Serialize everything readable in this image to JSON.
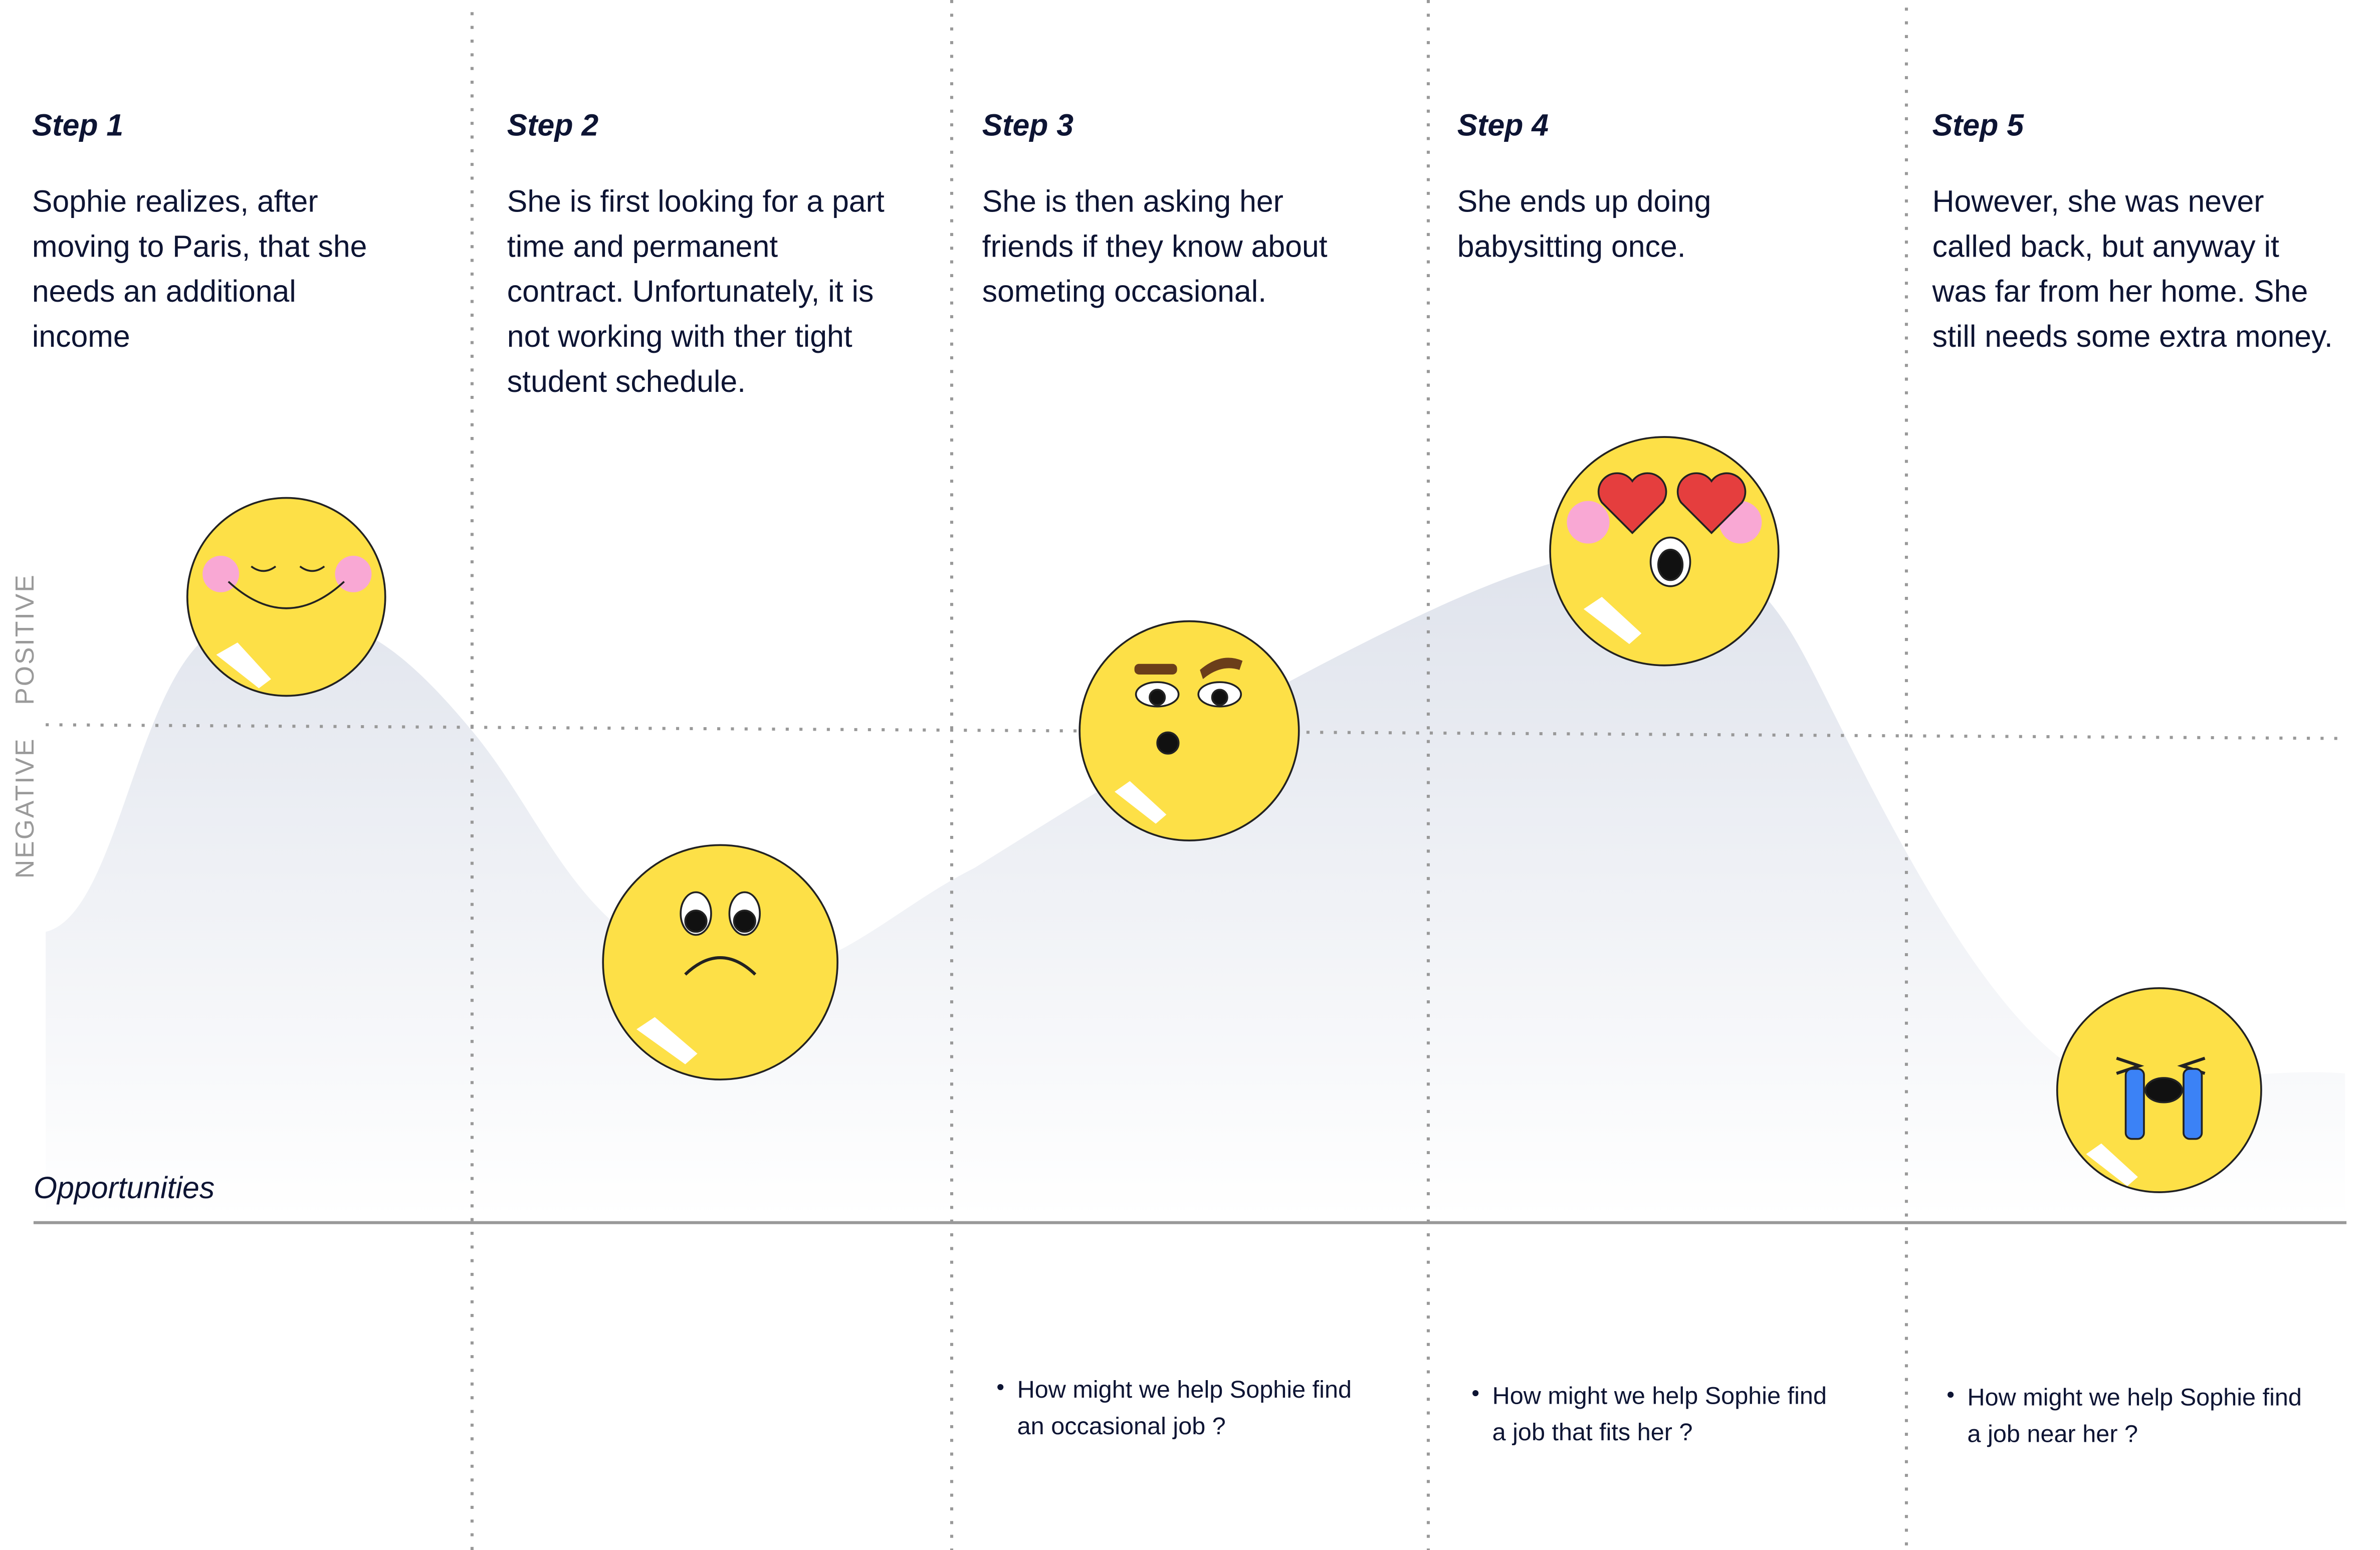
{
  "axis_labels": {
    "positive": "POSITIVE",
    "negative": "NEGATIVE"
  },
  "opportunities_label": "Opportunities",
  "steps": [
    {
      "title": "Step 1",
      "lines": [
        "Sophie realizes, after",
        "moving to Paris, that she",
        "needs an additional",
        "income"
      ]
    },
    {
      "title": "Step 2",
      "lines": [
        "She is first looking for a part",
        "time and permanent",
        "contract. Unfortunately, it is",
        "not working with ther tight",
        "student schedule."
      ]
    },
    {
      "title": "Step 3",
      "lines": [
        "She is then asking her",
        "friends if they know about",
        "someting occasional."
      ],
      "opportunity": [
        "How might we help Sophie find",
        "an occasional job ?"
      ]
    },
    {
      "title": "Step 4",
      "lines": [
        "She ends up doing",
        "babysitting once."
      ],
      "opportunity": [
        "How might we help Sophie find",
        "a job that fits her ?"
      ]
    },
    {
      "title": "Step 5",
      "lines": [
        "However, she was never",
        "called back, but anyway it",
        "was far from her home. She",
        "still needs some extra money."
      ],
      "opportunity": [
        "How might we help Sophie find",
        "a job near her ?"
      ]
    }
  ]
}
